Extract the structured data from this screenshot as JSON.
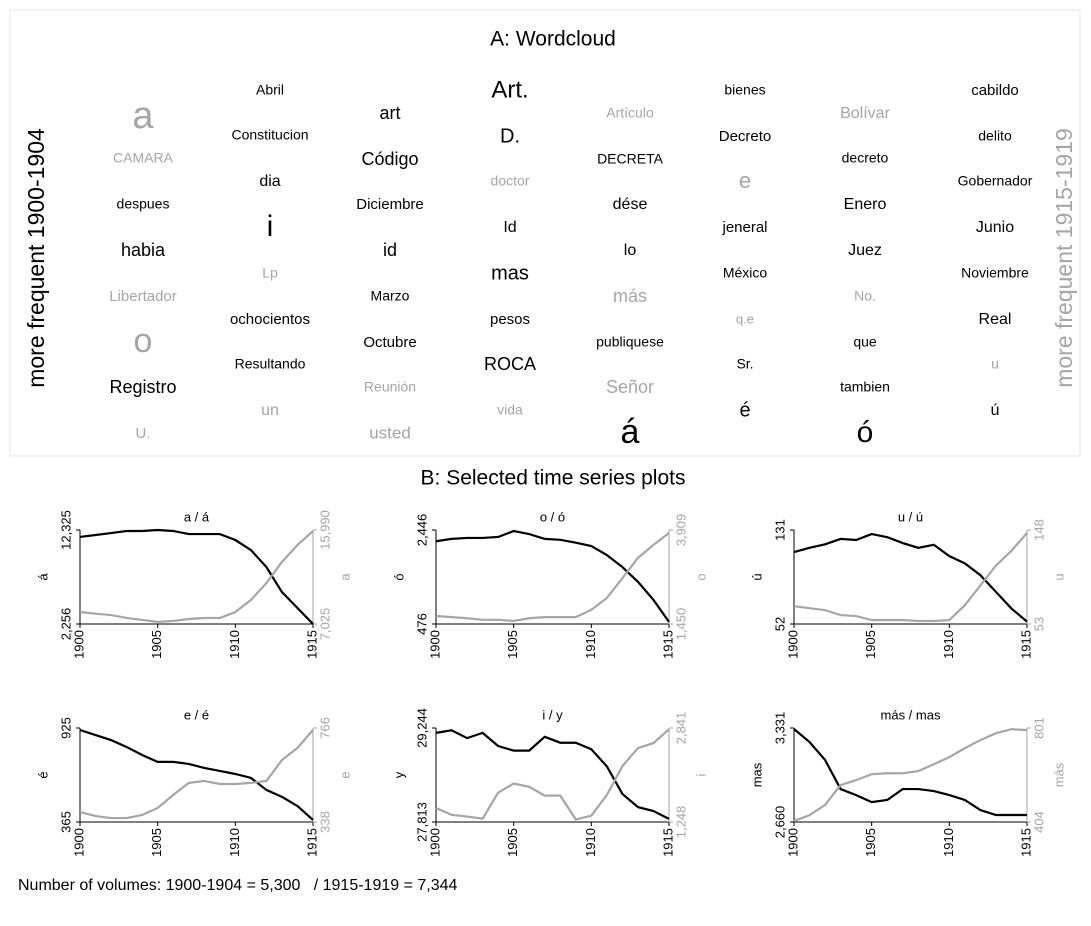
{
  "wordcloud": {
    "title": "A: Wordcloud",
    "left_label": "more frequent 1900-1904",
    "right_label": "more frequent 1915-1919",
    "words": [
      {
        "text": "a",
        "color": "#a6a6a6"
      },
      {
        "text": "CAMARA",
        "color": "#a6a6a6"
      },
      {
        "text": "despues",
        "color": "#000000"
      },
      {
        "text": "habia",
        "color": "#000000"
      },
      {
        "text": "Libertador",
        "color": "#a6a6a6"
      },
      {
        "text": "o",
        "color": "#a6a6a6"
      },
      {
        "text": "Registro",
        "color": "#000000"
      },
      {
        "text": "U.",
        "color": "#a6a6a6"
      },
      {
        "text": "Abril",
        "color": "#000000"
      },
      {
        "text": "Constitucion",
        "color": "#000000"
      },
      {
        "text": "dia",
        "color": "#000000"
      },
      {
        "text": "i",
        "color": "#000000"
      },
      {
        "text": "Lp",
        "color": "#a6a6a6"
      },
      {
        "text": "ochocientos",
        "color": "#000000"
      },
      {
        "text": "Resultando",
        "color": "#000000"
      },
      {
        "text": "un",
        "color": "#a6a6a6"
      },
      {
        "text": "art",
        "color": "#000000"
      },
      {
        "text": "Código",
        "color": "#000000"
      },
      {
        "text": "Diciembre",
        "color": "#000000"
      },
      {
        "text": "id",
        "color": "#000000"
      },
      {
        "text": "Marzo",
        "color": "#000000"
      },
      {
        "text": "Octubre",
        "color": "#000000"
      },
      {
        "text": "Reunión",
        "color": "#a6a6a6"
      },
      {
        "text": "usted",
        "color": "#a6a6a6"
      },
      {
        "text": "Art.",
        "color": "#000000"
      },
      {
        "text": "D.",
        "color": "#000000"
      },
      {
        "text": "doctor",
        "color": "#a6a6a6"
      },
      {
        "text": "Id",
        "color": "#000000"
      },
      {
        "text": "mas",
        "color": "#000000"
      },
      {
        "text": "pesos",
        "color": "#000000"
      },
      {
        "text": "ROCA",
        "color": "#000000"
      },
      {
        "text": "vida",
        "color": "#a6a6a6"
      },
      {
        "text": "Artículo",
        "color": "#a6a6a6"
      },
      {
        "text": "DECRETA",
        "color": "#000000"
      },
      {
        "text": "dése",
        "color": "#000000"
      },
      {
        "text": "lo",
        "color": "#000000"
      },
      {
        "text": "más",
        "color": "#a6a6a6"
      },
      {
        "text": "publiquese",
        "color": "#000000"
      },
      {
        "text": "Señor",
        "color": "#a6a6a6"
      },
      {
        "text": "á",
        "color": "#000000"
      },
      {
        "text": "bienes",
        "color": "#000000"
      },
      {
        "text": "Decreto",
        "color": "#000000"
      },
      {
        "text": "e",
        "color": "#a6a6a6"
      },
      {
        "text": "jeneral",
        "color": "#000000"
      },
      {
        "text": "México",
        "color": "#000000"
      },
      {
        "text": "q.e",
        "color": "#a6a6a6"
      },
      {
        "text": "Sr.",
        "color": "#000000"
      },
      {
        "text": "é",
        "color": "#000000"
      },
      {
        "text": "Bolívar",
        "color": "#a6a6a6"
      },
      {
        "text": "decreto",
        "color": "#000000"
      },
      {
        "text": "Enero",
        "color": "#000000"
      },
      {
        "text": "Juez",
        "color": "#000000"
      },
      {
        "text": "No.",
        "color": "#a6a6a6"
      },
      {
        "text": "que",
        "color": "#000000"
      },
      {
        "text": "tambien",
        "color": "#000000"
      },
      {
        "text": "ó",
        "color": "#000000"
      },
      {
        "text": "cabildo",
        "color": "#000000"
      },
      {
        "text": "delito",
        "color": "#000000"
      },
      {
        "text": "Gobernador",
        "color": "#000000"
      },
      {
        "text": "Junio",
        "color": "#000000"
      },
      {
        "text": "Noviembre",
        "color": "#000000"
      },
      {
        "text": "Real",
        "color": "#000000"
      },
      {
        "text": "u",
        "color": "#a6a6a6"
      },
      {
        "text": "ú",
        "color": "#000000"
      }
    ]
  },
  "section_b_title": "B: Selected time series plots",
  "footer": "Number of volumes: 1900-1904 = 5,300   / 1915-1919 = 7,344",
  "chart_data": [
    {
      "type": "line",
      "title": "a / á",
      "x": [
        1900,
        1901,
        1902,
        1903,
        1904,
        1905,
        1906,
        1907,
        1908,
        1909,
        1910,
        1911,
        1912,
        1913,
        1914,
        1915
      ],
      "xlim": [
        1900,
        1915
      ],
      "xticks": [
        1900,
        1905,
        1910,
        1915
      ],
      "ylim": [
        2256,
        12325
      ],
      "yticks": [
        {
          "value": 2256,
          "label": "2,256"
        },
        {
          "value": 12325,
          "label": "12,325"
        }
      ],
      "y2lim": [
        7025,
        15990
      ],
      "y2ticks": [
        {
          "value": 7025,
          "label": "7,025"
        },
        {
          "value": 15990,
          "label": "15,990"
        }
      ],
      "series": [
        {
          "name": "á",
          "color": "#000000",
          "values": [
            11580,
            11790,
            12000,
            12220,
            12220,
            12325,
            12220,
            11890,
            11890,
            11890,
            11250,
            10180,
            8360,
            5680,
            3970,
            2256
          ]
        },
        {
          "name": "a",
          "color": "#a6a6a6",
          "axis": "y2",
          "values": [
            8170,
            8010,
            7880,
            7600,
            7410,
            7220,
            7310,
            7500,
            7600,
            7600,
            8170,
            9310,
            10930,
            12940,
            14560,
            15890
          ]
        }
      ]
    },
    {
      "type": "line",
      "title": "o / ó",
      "x": [
        1900,
        1901,
        1902,
        1903,
        1904,
        1905,
        1906,
        1907,
        1908,
        1909,
        1910,
        1911,
        1912,
        1913,
        1914,
        1915
      ],
      "xlim": [
        1900,
        1915
      ],
      "xticks": [
        1900,
        1905,
        1910,
        1915
      ],
      "ylim": [
        476,
        2446
      ],
      "yticks": [
        476,
        {
          "value": 2446,
          "label": "2,446"
        }
      ],
      "y2lim": [
        1450,
        3909
      ],
      "y2ticks": [
        {
          "value": 1450,
          "label": "1,450"
        },
        {
          "value": 3909,
          "label": "3,909"
        }
      ],
      "series": [
        {
          "name": "ó",
          "color": "#000000",
          "values": [
            2210,
            2260,
            2280,
            2280,
            2300,
            2424,
            2360,
            2260,
            2240,
            2180,
            2110,
            1920,
            1670,
            1360,
            980,
            520
          ]
        },
        {
          "name": "o",
          "color": "#a6a6a6",
          "axis": "y2",
          "values": [
            1660,
            1630,
            1600,
            1560,
            1560,
            1530,
            1600,
            1630,
            1630,
            1630,
            1820,
            2130,
            2650,
            3180,
            3520,
            3830
          ]
        }
      ]
    },
    {
      "type": "line",
      "title": "u / ú",
      "x": [
        1900,
        1901,
        1902,
        1903,
        1904,
        1905,
        1906,
        1907,
        1908,
        1909,
        1910,
        1911,
        1912,
        1913,
        1914,
        1915
      ],
      "xlim": [
        1900,
        1915
      ],
      "xticks": [
        1900,
        1905,
        1910,
        1915
      ],
      "ylim": [
        52,
        131
      ],
      "yticks": [
        52,
        131
      ],
      "y2lim": [
        53,
        148
      ],
      "y2ticks": [
        53,
        148
      ],
      "series": [
        {
          "name": "ú",
          "color": "#000000",
          "values": [
            112.5,
            116,
            119,
            123.5,
            122.6,
            127.6,
            125,
            120,
            116,
            118.6,
            109,
            103,
            93,
            79,
            65,
            54
          ]
        },
        {
          "name": "u",
          "color": "#a6a6a6",
          "axis": "y2",
          "values": [
            71,
            69,
            67,
            62,
            61,
            57,
            57,
            57,
            56,
            56,
            57,
            72,
            92,
            112,
            127,
            145
          ]
        }
      ]
    },
    {
      "type": "line",
      "title": "e / é",
      "x": [
        1900,
        1901,
        1902,
        1903,
        1904,
        1905,
        1906,
        1907,
        1908,
        1909,
        1910,
        1911,
        1912,
        1913,
        1914,
        1915
      ],
      "xlim": [
        1900,
        1915
      ],
      "xticks": [
        1900,
        1905,
        1910,
        1915
      ],
      "ylim": [
        365,
        925
      ],
      "yticks": [
        365,
        925
      ],
      "y2lim": [
        338,
        766
      ],
      "y2ticks": [
        338,
        766
      ],
      "series": [
        {
          "name": "é",
          "color": "#000000",
          "values": [
            913,
            883,
            853,
            812,
            764,
            723,
            723,
            711,
            687,
            669,
            651,
            628,
            556,
            515,
            460,
            377
          ]
        },
        {
          "name": "e",
          "color": "#a6a6a6",
          "axis": "y2",
          "values": [
            383,
            365,
            356,
            356,
            370,
            402,
            461,
            516,
            525,
            511,
            511,
            516,
            525,
            620,
            675,
            757
          ]
        }
      ]
    },
    {
      "type": "line",
      "title": "i / y",
      "x": [
        1900,
        1901,
        1902,
        1903,
        1904,
        1905,
        1906,
        1907,
        1908,
        1909,
        1910,
        1911,
        1912,
        1913,
        1914,
        1915
      ],
      "xlim": [
        1900,
        1915
      ],
      "xticks": [
        1900,
        1905,
        1910,
        1915
      ],
      "ylim": [
        27813,
        29244
      ],
      "yticks": [
        {
          "value": 27813,
          "label": "27,813"
        },
        {
          "value": 29244,
          "label": "29,244"
        }
      ],
      "y2lim": [
        1248,
        2841
      ],
      "y2ticks": [
        {
          "value": 1248,
          "label": "1,248"
        },
        {
          "value": 2841,
          "label": "2,841"
        }
      ],
      "series": [
        {
          "name": "y",
          "color": "#000000",
          "values": [
            29170,
            29210,
            29090,
            29170,
            28970,
            28900,
            28900,
            29110,
            29020,
            29020,
            28920,
            28660,
            28240,
            28040,
            27980,
            27860
          ]
        },
        {
          "name": "i",
          "color": "#a6a6a6",
          "axis": "y2",
          "values": [
            1485,
            1370,
            1340,
            1305,
            1745,
            1900,
            1845,
            1695,
            1695,
            1290,
            1355,
            1705,
            2195,
            2500,
            2585,
            2820
          ]
        }
      ]
    },
    {
      "type": "line",
      "title": "más / mas",
      "x": [
        1900,
        1901,
        1902,
        1903,
        1904,
        1905,
        1906,
        1907,
        1908,
        1909,
        1910,
        1911,
        1912,
        1913,
        1914,
        1915
      ],
      "xlim": [
        1900,
        1915
      ],
      "xticks": [
        1900,
        1905,
        1910,
        1915
      ],
      "ylim": [
        2660,
        3331
      ],
      "yticks": [
        {
          "value": 2660,
          "label": "2,660"
        },
        {
          "value": 3331,
          "label": "3,331"
        }
      ],
      "y2lim": [
        404,
        801
      ],
      "y2ticks": [
        404,
        801
      ],
      "series": [
        {
          "name": "mas",
          "color": "#000000",
          "values": [
            3324,
            3231,
            3103,
            2895,
            2852,
            2802,
            2817,
            2895,
            2895,
            2881,
            2852,
            2817,
            2745,
            2710,
            2710,
            2710
          ]
        },
        {
          "name": "más",
          "color": "#a6a6a6",
          "axis": "y2",
          "values": [
            408,
            433,
            476,
            560,
            581,
            606,
            610,
            610,
            619,
            648,
            678,
            716,
            750,
            779,
            796,
            792
          ]
        }
      ]
    }
  ]
}
